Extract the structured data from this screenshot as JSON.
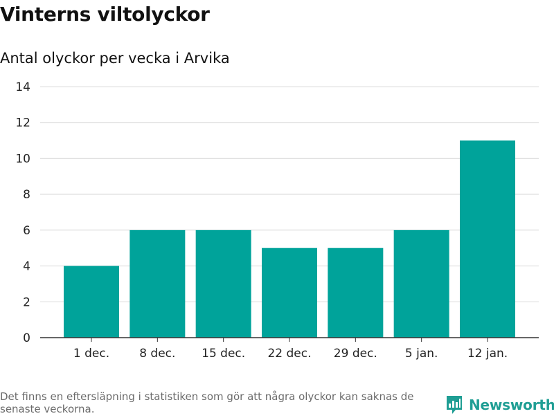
{
  "header": {
    "title": "Vinterns viltolyckor",
    "subtitle": "Antal olyckor per vecka i Arvika"
  },
  "chart_data": {
    "type": "bar",
    "title": "Vinterns viltolyckor",
    "subtitle": "Antal olyckor per vecka i Arvika",
    "categories": [
      "1 dec.",
      "8 dec.",
      "15 dec.",
      "22 dec.",
      "29 dec.",
      "5 jan.",
      "12 jan."
    ],
    "values": [
      4,
      6,
      6,
      5,
      5,
      6,
      11
    ],
    "xlabel": "",
    "ylabel": "",
    "ylim": [
      0,
      14
    ],
    "yticks": [
      0,
      2,
      4,
      6,
      8,
      10,
      12,
      14
    ],
    "grid": true,
    "legend": "none",
    "bar_color": "#00a39a"
  },
  "footer": {
    "note": "Det finns en eftersläpning i statistiken som gör att några olyckor kan saknas de senaste veckorna.",
    "brand": "Newsworthy",
    "brand_color": "#1f9e94",
    "brand_icon": "newsworthy-logo-icon"
  }
}
